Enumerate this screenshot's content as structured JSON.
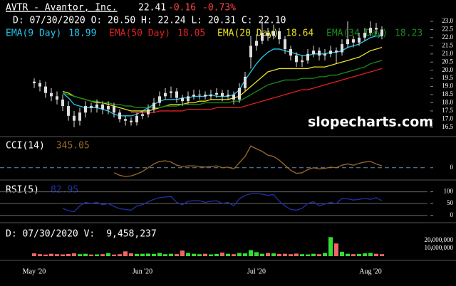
{
  "chart_data": [
    {
      "type": "candlestick",
      "title": "AVTR - Avantor, Inc.",
      "last": "22.41",
      "change": "-0.16",
      "change_pct": "-0.73%",
      "ohlc_label": "D: 07/30/2020 O: 20.50 H: 22.24 L: 20.31 C: 22.10",
      "watermark": "slopecharts.com",
      "candle_color": "#dddddd",
      "categories": [
        "May '20",
        null,
        null,
        null,
        null,
        null,
        null,
        null,
        null,
        null,
        null,
        null,
        null,
        null,
        null,
        null,
        null,
        null,
        null,
        "Jun '20",
        null,
        null,
        null,
        null,
        null,
        null,
        null,
        null,
        null,
        null,
        null,
        null,
        null,
        null,
        null,
        null,
        null,
        null,
        null,
        "Jul '20",
        null,
        null,
        null,
        null,
        null,
        null,
        null,
        null,
        null,
        null,
        null,
        null,
        null,
        null,
        null,
        null,
        null,
        null,
        null,
        "Aug '20",
        null,
        null
      ],
      "open": [
        19.3,
        19.2,
        19.0,
        18.6,
        18.4,
        18.2,
        17.8,
        17.2,
        16.9,
        17.4,
        17.8,
        17.7,
        17.9,
        17.6,
        17.8,
        17.4,
        17.0,
        16.9,
        16.8,
        17.2,
        17.3,
        17.6,
        18.0,
        18.4,
        18.6,
        18.7,
        18.3,
        18.1,
        18.4,
        18.5,
        18.5,
        18.4,
        18.5,
        18.6,
        18.4,
        18.5,
        18.2,
        18.9,
        20.8,
        21.5,
        21.8,
        22.3,
        22.1,
        22.4,
        21.9,
        21.3,
        20.9,
        20.5,
        20.6,
        21.0,
        21.2,
        20.9,
        21.0,
        21.2,
        21.1,
        21.6,
        21.9,
        21.7,
        22.0,
        22.3,
        22.6,
        22.5
      ],
      "high": [
        19.5,
        19.4,
        19.3,
        18.9,
        18.7,
        18.5,
        18.1,
        17.5,
        17.7,
        18.1,
        18.0,
        18.2,
        18.1,
        18.1,
        18.0,
        17.6,
        17.2,
        17.1,
        17.4,
        17.5,
        17.9,
        18.3,
        18.7,
        18.9,
        19.0,
        18.9,
        18.5,
        18.7,
        18.8,
        18.8,
        18.7,
        18.8,
        18.9,
        18.8,
        18.8,
        18.7,
        19.2,
        19.9,
        22.1,
        22.2,
        23.0,
        22.6,
        22.8,
        22.6,
        22.1,
        21.5,
        21.1,
        20.9,
        21.3,
        21.5,
        21.4,
        21.3,
        21.5,
        21.4,
        21.9,
        23.0,
        22.1,
        22.3,
        22.6,
        23.0,
        22.9,
        22.7
      ],
      "low": [
        18.9,
        18.7,
        18.3,
        18.1,
        17.9,
        17.5,
        16.9,
        16.5,
        16.6,
        17.1,
        17.4,
        17.4,
        17.3,
        17.3,
        17.1,
        16.8,
        16.6,
        16.6,
        16.6,
        17.0,
        17.1,
        17.4,
        17.8,
        18.2,
        18.3,
        18.0,
        17.8,
        17.9,
        18.2,
        18.2,
        18.2,
        18.2,
        18.3,
        18.1,
        18.2,
        17.9,
        18.0,
        18.7,
        20.1,
        21.2,
        21.6,
        21.8,
        21.9,
        21.6,
        21.0,
        20.6,
        20.2,
        20.2,
        20.4,
        20.8,
        20.6,
        20.6,
        20.8,
        20.4,
        20.9,
        21.4,
        21.4,
        21.5,
        21.8,
        22.1,
        22.2,
        21.9
      ],
      "close": [
        19.2,
        19.0,
        18.6,
        18.4,
        18.2,
        17.8,
        17.2,
        16.9,
        17.4,
        17.8,
        17.7,
        17.9,
        17.6,
        17.8,
        17.4,
        17.0,
        16.9,
        16.8,
        17.2,
        17.3,
        17.6,
        18.0,
        18.4,
        18.6,
        18.7,
        18.3,
        18.1,
        18.4,
        18.5,
        18.5,
        18.4,
        18.5,
        18.6,
        18.4,
        18.5,
        18.2,
        18.9,
        19.6,
        21.5,
        21.8,
        22.3,
        22.1,
        22.4,
        21.9,
        21.3,
        20.9,
        20.5,
        20.6,
        21.0,
        21.2,
        20.9,
        21.0,
        21.2,
        21.1,
        21.6,
        21.9,
        21.7,
        22.0,
        22.3,
        22.6,
        22.5,
        22.1
      ],
      "series": [
        {
          "name": "EMA(9 Day)",
          "legend_value": 18.99,
          "color": "#22c8ee",
          "values": [
            null,
            null,
            null,
            null,
            null,
            18.6,
            18.3,
            17.9,
            17.8,
            17.7,
            17.7,
            17.7,
            17.6,
            17.5,
            17.3,
            17.2,
            17.2,
            17.2,
            17.3,
            17.5,
            17.7,
            17.9,
            18.1,
            18.2,
            18.2,
            18.2,
            18.3,
            18.3,
            18.4,
            18.4,
            18.4,
            18.5,
            18.4,
            18.4,
            18.4,
            18.5,
            18.8,
            19.4,
            19.9,
            20.4,
            20.8,
            21.1,
            21.3,
            21.3,
            21.2,
            21.1,
            21.0,
            20.9,
            20.9,
            21.0,
            21.0,
            21.0,
            21.1,
            21.1,
            21.2,
            21.4,
            21.5,
            21.6,
            21.8,
            22.0,
            22.1,
            22.1
          ]
        },
        {
          "name": "EMA(50 Day)",
          "legend_value": 18.05,
          "color": "#e02020",
          "values": [
            null,
            null,
            null,
            null,
            null,
            null,
            null,
            null,
            null,
            null,
            null,
            null,
            null,
            null,
            null,
            null,
            null,
            17.4,
            17.4,
            17.4,
            17.4,
            17.4,
            17.5,
            17.5,
            17.5,
            17.5,
            17.5,
            17.6,
            17.6,
            17.6,
            17.6,
            17.6,
            17.7,
            17.7,
            17.7,
            17.7,
            17.7,
            17.8,
            17.9,
            18.0,
            18.1,
            18.2,
            18.3,
            18.4,
            18.5,
            18.6,
            18.7,
            18.8,
            18.8,
            18.9,
            19.0,
            19.1,
            19.2,
            19.3,
            19.4,
            19.5,
            19.6,
            19.7,
            19.8,
            19.9,
            20.0,
            20.1
          ]
        },
        {
          "name": "EMA(20 Day)",
          "legend_value": 18.64,
          "color": "#e8e020",
          "values": [
            null,
            null,
            null,
            null,
            null,
            18.7,
            18.6,
            18.4,
            18.3,
            18.2,
            18.1,
            18.0,
            18.0,
            17.9,
            17.8,
            17.7,
            17.6,
            17.5,
            17.5,
            17.5,
            17.5,
            17.6,
            17.7,
            17.8,
            17.9,
            17.9,
            17.9,
            18.0,
            18.0,
            18.1,
            18.1,
            18.2,
            18.2,
            18.2,
            18.2,
            18.3,
            18.4,
            18.7,
            19.0,
            19.3,
            19.6,
            19.9,
            20.0,
            20.1,
            20.1,
            20.1,
            20.1,
            20.1,
            20.1,
            20.2,
            20.2,
            20.2,
            20.3,
            20.4,
            20.5,
            20.6,
            20.7,
            20.8,
            21.0,
            21.2,
            21.3,
            21.4
          ]
        },
        {
          "name": "EMA(34 Day)",
          "legend_value": 18.23,
          "color": "#1a8c1a",
          "values": [
            null,
            null,
            null,
            null,
            null,
            18.6,
            18.5,
            18.4,
            18.3,
            18.2,
            18.1,
            18.1,
            18.0,
            18.0,
            17.9,
            17.9,
            17.8,
            17.8,
            17.7,
            17.7,
            17.7,
            17.7,
            17.7,
            17.8,
            17.8,
            17.8,
            17.9,
            17.9,
            17.9,
            17.9,
            18.0,
            18.0,
            18.0,
            18.0,
            18.0,
            18.1,
            18.1,
            18.3,
            18.5,
            18.7,
            18.9,
            19.1,
            19.2,
            19.3,
            19.4,
            19.4,
            19.4,
            19.5,
            19.5,
            19.5,
            19.6,
            19.6,
            19.7,
            19.7,
            19.8,
            19.9,
            20.0,
            20.1,
            20.2,
            20.4,
            20.5,
            20.6
          ]
        }
      ],
      "ylim": [
        16.1,
        23.35
      ],
      "yticks": [
        {
          "value": 23,
          "label": "23.0"
        },
        22.5,
        {
          "value": 22,
          "label": "22.0"
        },
        21.5,
        {
          "value": 21,
          "label": "21.0"
        },
        20.5,
        {
          "value": 20,
          "label": "20.0"
        },
        19.5,
        {
          "value": 19,
          "label": "19.0"
        },
        18.5,
        {
          "value": 18,
          "label": "18.0"
        },
        17.5,
        {
          "value": 17,
          "label": "17.0"
        },
        16.5
      ]
    },
    {
      "type": "line",
      "title": "CCI(14)",
      "title_value": 345.05,
      "color": "#9a6a2a",
      "zero_color": "#6a8ab0",
      "values": [
        null,
        null,
        null,
        null,
        null,
        null,
        null,
        null,
        null,
        null,
        null,
        null,
        null,
        null,
        -80,
        -120,
        -140,
        -130,
        -100,
        -60,
        0,
        60,
        100,
        110,
        90,
        40,
        20,
        30,
        30,
        20,
        10,
        20,
        30,
        0,
        10,
        -20,
        80,
        180,
        345,
        300,
        260,
        200,
        180,
        120,
        40,
        -40,
        -90,
        -80,
        -30,
        0,
        -20,
        -10,
        10,
        0,
        40,
        60,
        40,
        70,
        90,
        100,
        60,
        30
      ],
      "ylim": [
        -150,
        450
      ],
      "yticks": [
        0
      ]
    },
    {
      "type": "line",
      "title": "RSI(5)",
      "title_value": 82.95,
      "color": "#2030a8",
      "values": [
        null,
        null,
        null,
        null,
        null,
        30,
        20,
        15,
        40,
        55,
        50,
        55,
        45,
        50,
        38,
        28,
        25,
        22,
        40,
        45,
        58,
        68,
        75,
        78,
        80,
        55,
        45,
        60,
        62,
        62,
        55,
        60,
        62,
        50,
        55,
        40,
        70,
        85,
        92,
        93,
        90,
        85,
        88,
        60,
        40,
        25,
        22,
        30,
        50,
        58,
        40,
        48,
        55,
        50,
        72,
        70,
        65,
        68,
        72,
        68,
        75,
        62
      ],
      "ylim": [
        -10,
        135
      ],
      "yticks": [
        100,
        50,
        0
      ]
    },
    {
      "type": "bar",
      "title": "D: 07/30/2020 V:",
      "title_value": "9,458,237",
      "up_color": "#33dd33",
      "down_color": "#ee6666",
      "values": [
        3500000,
        2500000,
        2000000,
        3000000,
        2500000,
        2200000,
        2800000,
        3500000,
        2500000,
        3000000,
        2000000,
        2200000,
        2500000,
        3800000,
        2000000,
        2500000,
        6000000,
        3500000,
        2800000,
        3000000,
        3200000,
        2800000,
        4000000,
        2500000,
        3000000,
        2600000,
        7000000,
        4000000,
        3000000,
        2500000,
        3000000,
        2200000,
        2800000,
        4500000,
        3000000,
        2500000,
        4000000,
        3500000,
        7500000,
        5000000,
        3000000,
        4000000,
        3500000,
        2800000,
        3000000,
        2500000,
        3200000,
        2500000,
        2200000,
        3000000,
        2500000,
        4000000,
        24000000,
        16000000,
        5500000,
        3000000,
        2500000,
        2800000,
        3500000,
        4000000,
        3000000,
        2500000
      ],
      "ylim": [
        0,
        36000000
      ],
      "yticks": [
        {
          "value": 20000000,
          "label": "20,000,000"
        },
        {
          "value": 10000000,
          "label": "10,000,000"
        }
      ]
    }
  ]
}
